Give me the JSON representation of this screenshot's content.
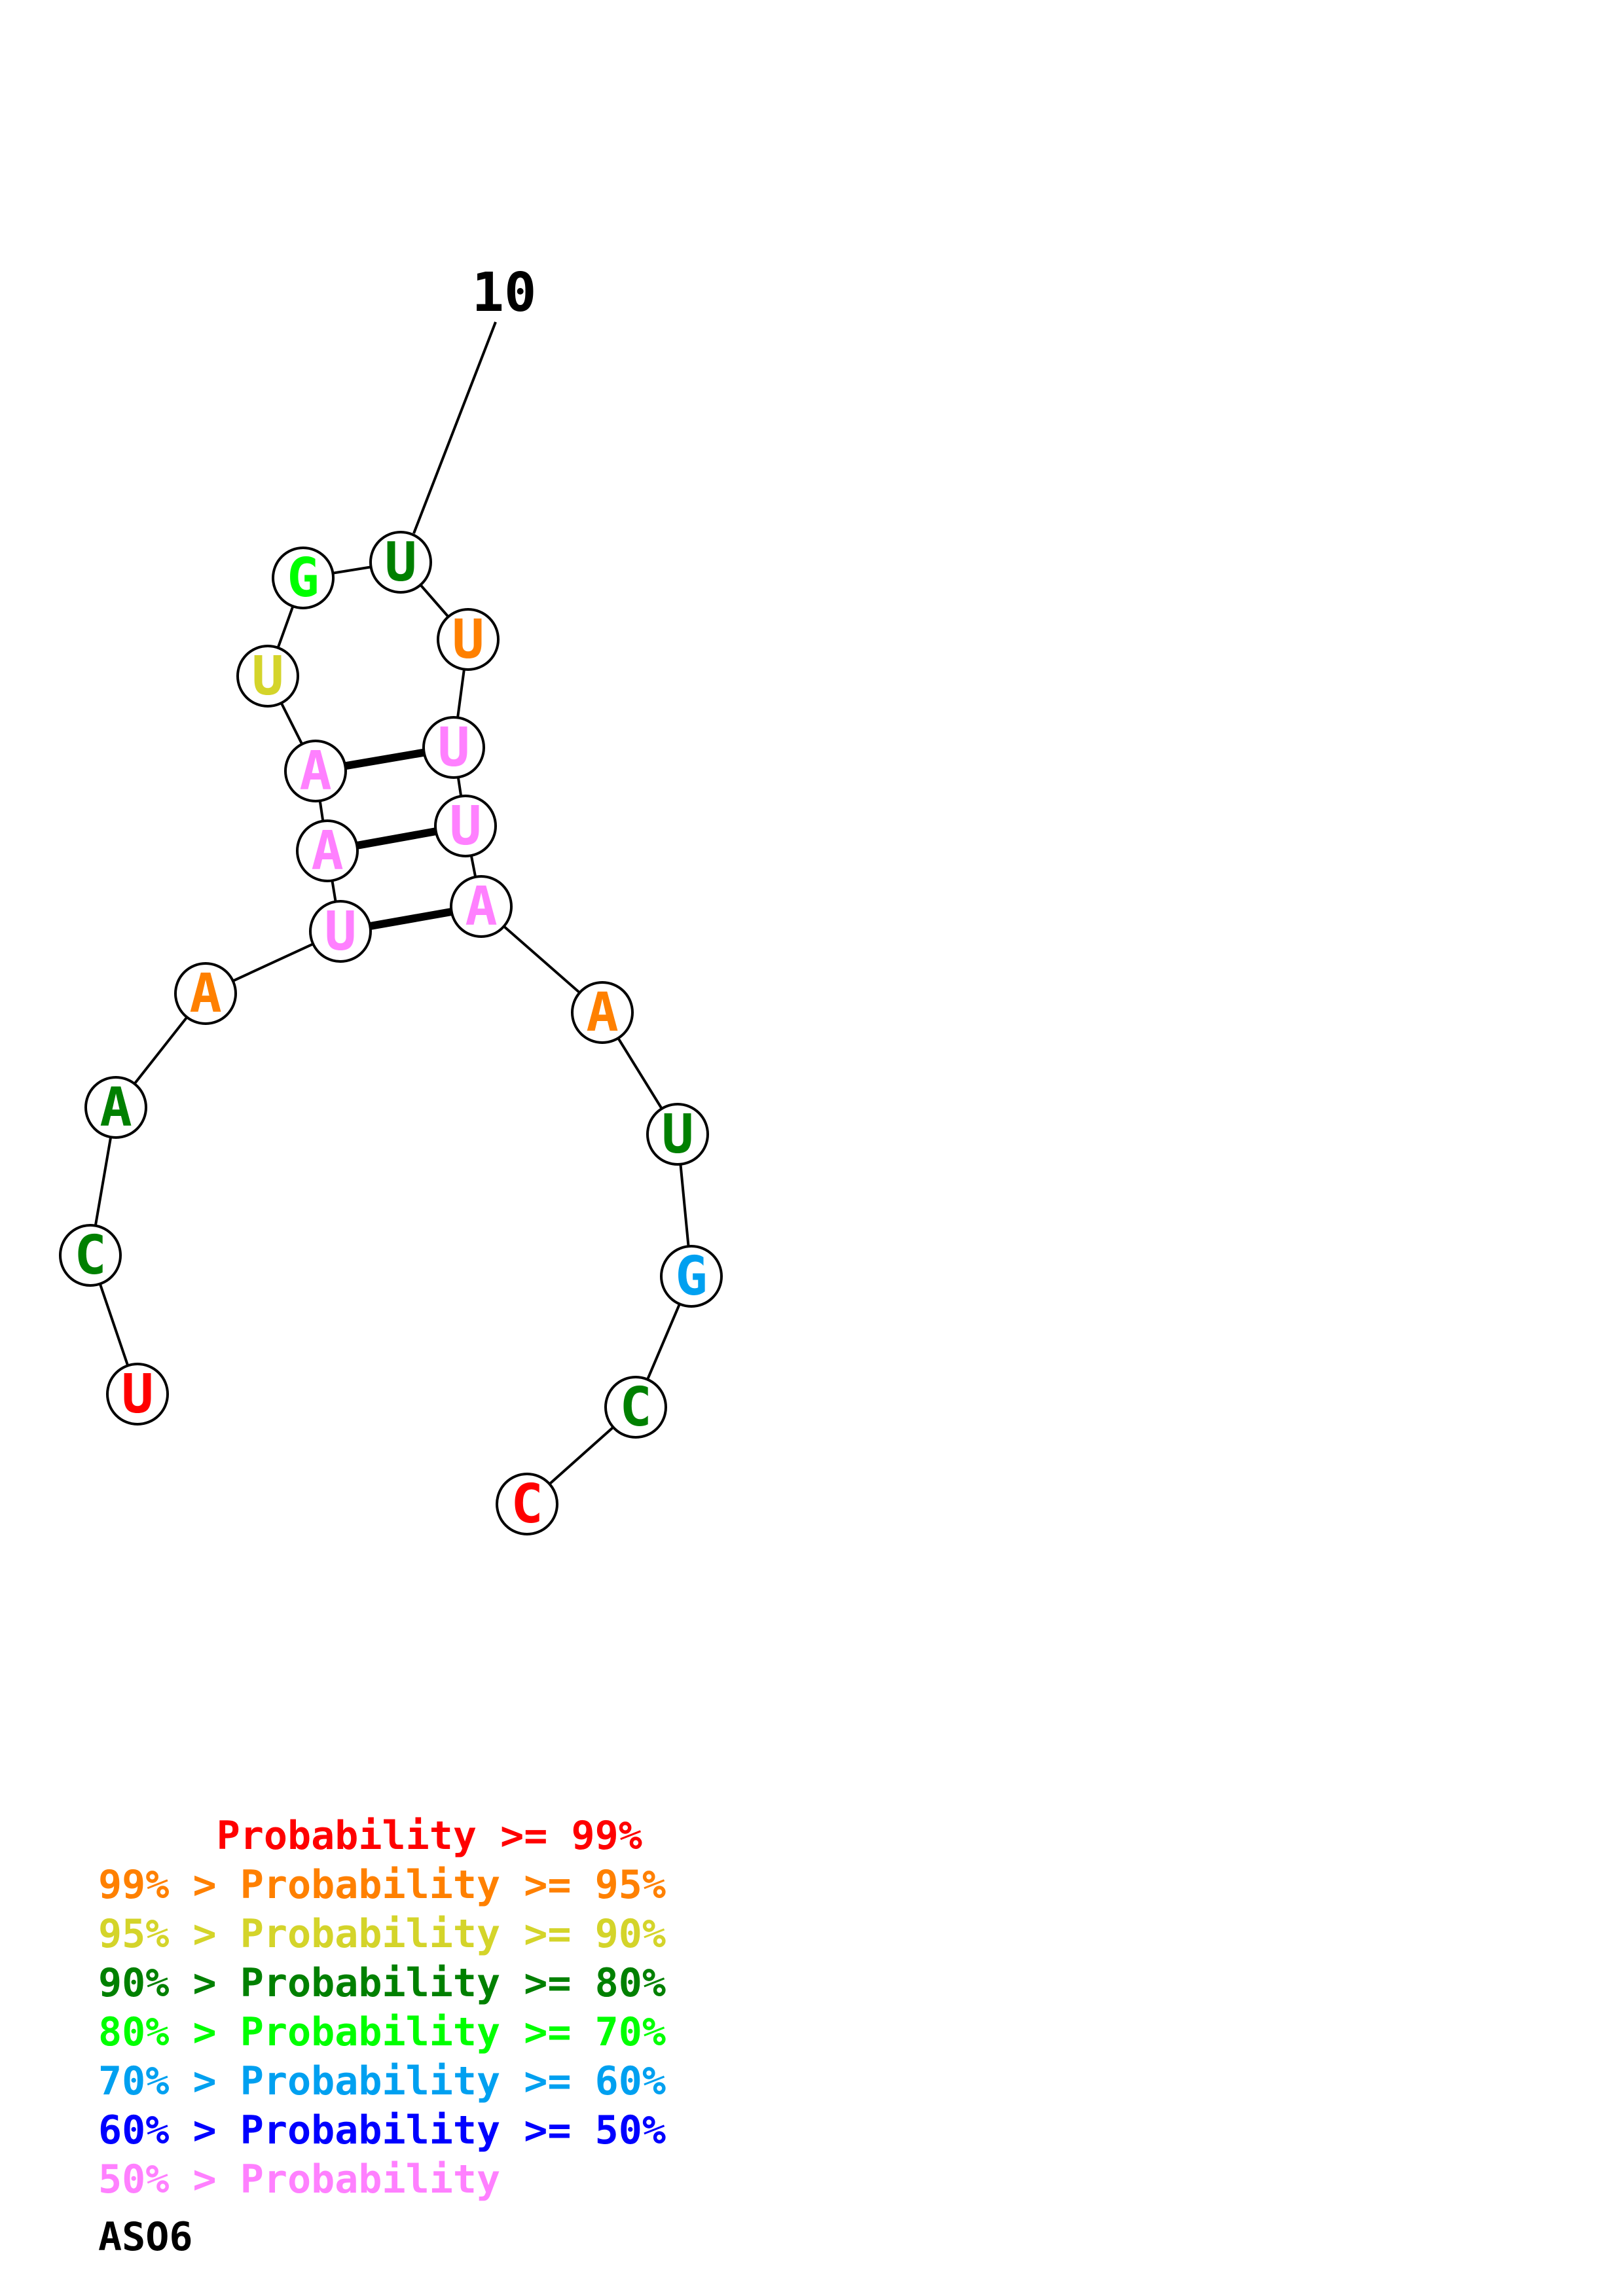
{
  "structure": {
    "number_label": "10",
    "nucleotides": [
      {
        "index": 1,
        "base": "U",
        "color": "#ff0000"
      },
      {
        "index": 2,
        "base": "C",
        "color": "#008000"
      },
      {
        "index": 3,
        "base": "A",
        "color": "#008000"
      },
      {
        "index": 4,
        "base": "A",
        "color": "#ff8000"
      },
      {
        "index": 5,
        "base": "U",
        "color": "#ff80ff"
      },
      {
        "index": 6,
        "base": "A",
        "color": "#ff80ff"
      },
      {
        "index": 7,
        "base": "A",
        "color": "#ff80ff"
      },
      {
        "index": 8,
        "base": "U",
        "color": "#d4d42a"
      },
      {
        "index": 9,
        "base": "G",
        "color": "#00ff00"
      },
      {
        "index": 10,
        "base": "U",
        "color": "#008000"
      },
      {
        "index": 11,
        "base": "U",
        "color": "#ff8000"
      },
      {
        "index": 12,
        "base": "U",
        "color": "#ff80ff"
      },
      {
        "index": 13,
        "base": "U",
        "color": "#ff80ff"
      },
      {
        "index": 14,
        "base": "A",
        "color": "#ff80ff"
      },
      {
        "index": 15,
        "base": "A",
        "color": "#ff8000"
      },
      {
        "index": 16,
        "base": "U",
        "color": "#008000"
      },
      {
        "index": 17,
        "base": "G",
        "color": "#00a0f0"
      },
      {
        "index": 18,
        "base": "C",
        "color": "#008000"
      },
      {
        "index": 19,
        "base": "C",
        "color": "#ff0000"
      }
    ],
    "base_pairs": [
      [
        5,
        14
      ],
      [
        6,
        13
      ],
      [
        7,
        12
      ]
    ]
  },
  "legend": [
    {
      "text": "     Probability >= 99%",
      "color": "#ff0000"
    },
    {
      "text": "99% > Probability >= 95%",
      "color": "#ff8000"
    },
    {
      "text": "95% > Probability >= 90%",
      "color": "#d4d42a"
    },
    {
      "text": "90% > Probability >= 80%",
      "color": "#008000"
    },
    {
      "text": "80% > Probability >= 70%",
      "color": "#00ff00"
    },
    {
      "text": "70% > Probability >= 60%",
      "color": "#00a0f0"
    },
    {
      "text": "60% > Probability >= 50%",
      "color": "#0000ff"
    },
    {
      "text": "50% > Probability",
      "color": "#ff80ff"
    }
  ],
  "sequence_name": "ASO6"
}
